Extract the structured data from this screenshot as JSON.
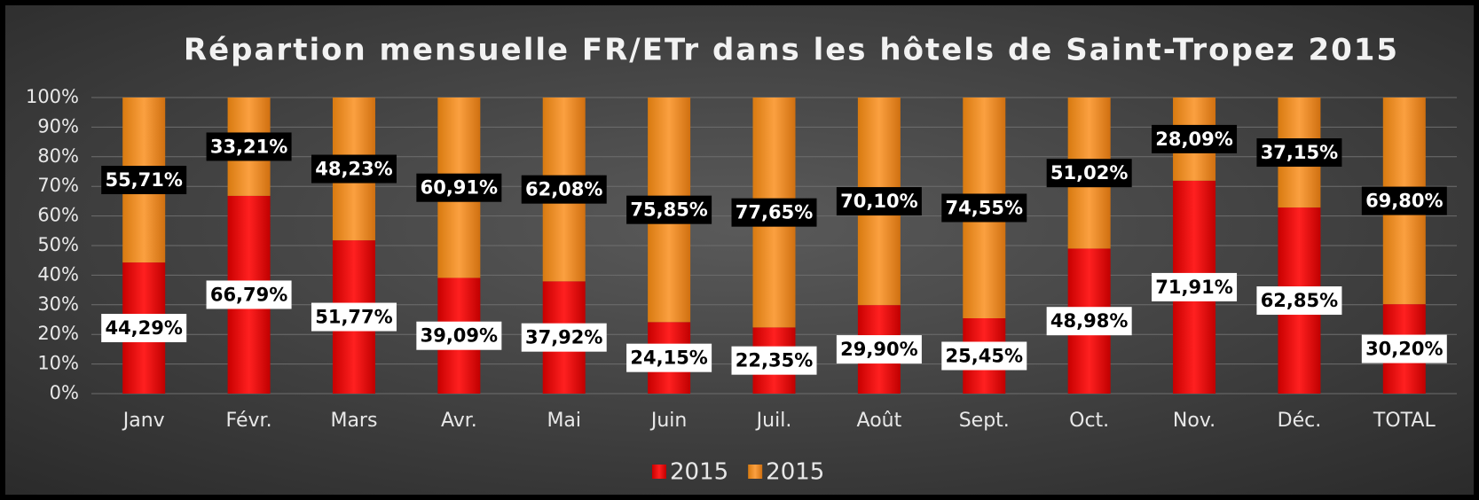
{
  "chart_data": {
    "type": "stacked_bar",
    "title": "Répartion mensuelle FR/ETr dans les hôtels de Saint-Tropez  2015",
    "categories": [
      "Janv",
      "Févr.",
      "Mars",
      "Avr.",
      "Mai",
      "Juin",
      "Juil.",
      "Août",
      "Sept.",
      "Oct.",
      "Nov.",
      "Déc.",
      "TOTAL"
    ],
    "series": [
      {
        "name": "2015",
        "color": "#ff1a1a",
        "values": [
          44.29,
          66.79,
          51.77,
          39.09,
          37.92,
          24.15,
          22.35,
          29.9,
          25.45,
          48.98,
          71.91,
          62.85,
          30.2
        ],
        "value_labels": [
          "44,29%",
          "66,79%",
          "51,77%",
          "39,09%",
          "37,92%",
          "24,15%",
          "22,35%",
          "29,90%",
          "25,45%",
          "48,98%",
          "71,91%",
          "62,85%",
          "30,20%"
        ]
      },
      {
        "name": "2015",
        "color": "#f7941d",
        "values": [
          55.71,
          33.21,
          48.23,
          60.91,
          62.08,
          75.85,
          77.65,
          70.1,
          74.55,
          51.02,
          28.09,
          37.15,
          69.8
        ],
        "value_labels": [
          "55,71%",
          "33,21%",
          "48,23%",
          "60,91%",
          "62,08%",
          "75,85%",
          "77,65%",
          "70,10%",
          "74,55%",
          "51,02%",
          "28,09%",
          "37,15%",
          "69,80%"
        ]
      }
    ],
    "ylim": [
      0,
      100
    ],
    "yticks": [
      {
        "value": 0,
        "label": "0%"
      },
      {
        "value": 10,
        "label": "10%"
      },
      {
        "value": 20,
        "label": "20%"
      },
      {
        "value": 30,
        "label": "30%"
      },
      {
        "value": 40,
        "label": "40%"
      },
      {
        "value": 50,
        "label": "50%"
      },
      {
        "value": 60,
        "label": "60%"
      },
      {
        "value": 70,
        "label": "70%"
      },
      {
        "value": 80,
        "label": "80%"
      },
      {
        "value": 90,
        "label": "90%"
      },
      {
        "value": 100,
        "label": "100%"
      }
    ],
    "grid": true,
    "legend": "bottom"
  }
}
